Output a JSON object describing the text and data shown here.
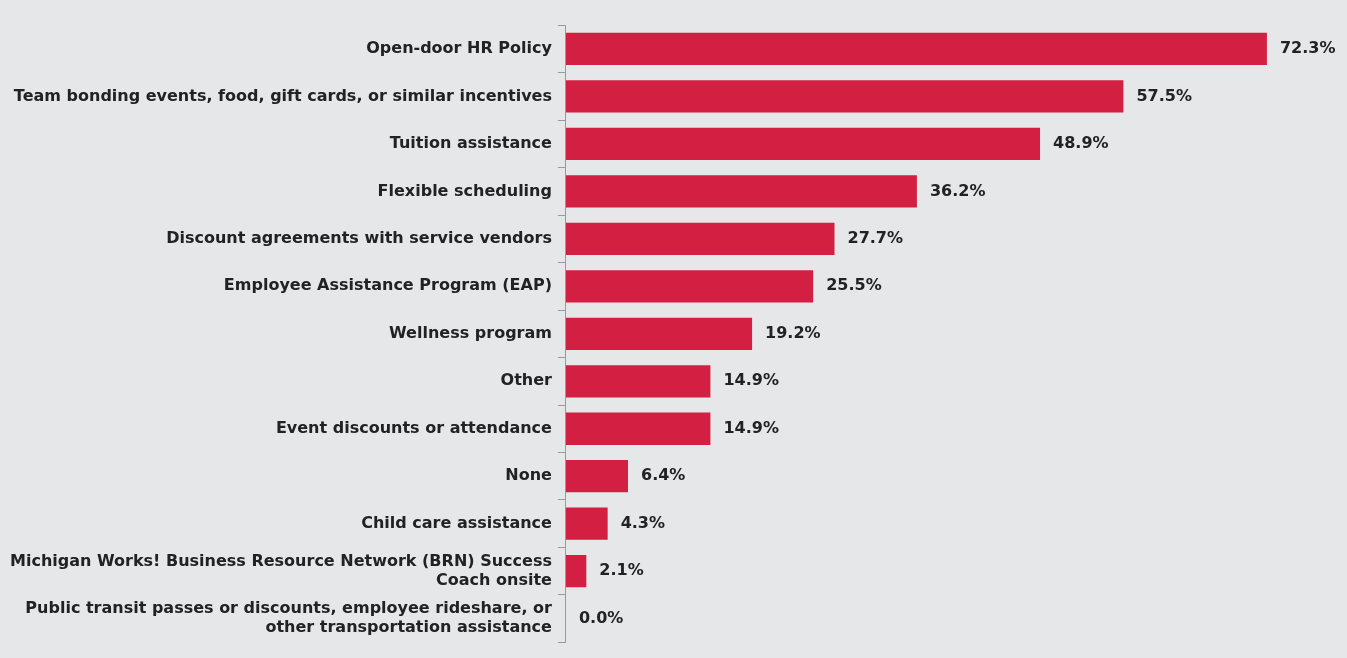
{
  "chart_data": {
    "type": "bar",
    "orientation": "horizontal",
    "categories": [
      "Open-door HR Policy",
      "Team bonding events, food, gift cards, or similar incentives",
      "Tuition assistance",
      "Flexible scheduling",
      "Discount agreements with service vendors",
      "Employee Assistance Program (EAP)",
      "Wellness program",
      "Other",
      "Event discounts or attendance",
      "None",
      "Child care assistance",
      "Michigan Works! Business Resource Network (BRN) Success Coach onsite",
      "Public transit passes or discounts, employee rideshare, or other transportation assistance"
    ],
    "values": [
      72.3,
      57.5,
      48.9,
      36.2,
      27.7,
      25.5,
      19.2,
      14.9,
      14.9,
      6.4,
      4.3,
      2.1,
      0.0
    ],
    "value_labels": [
      "72.3%",
      "57.5%",
      "48.9%",
      "36.2%",
      "27.7%",
      "25.5%",
      "19.2%",
      "14.9%",
      "14.9%",
      "6.4%",
      "4.3%",
      "2.1%",
      "0.0%"
    ],
    "color": "#d21f42"
  }
}
